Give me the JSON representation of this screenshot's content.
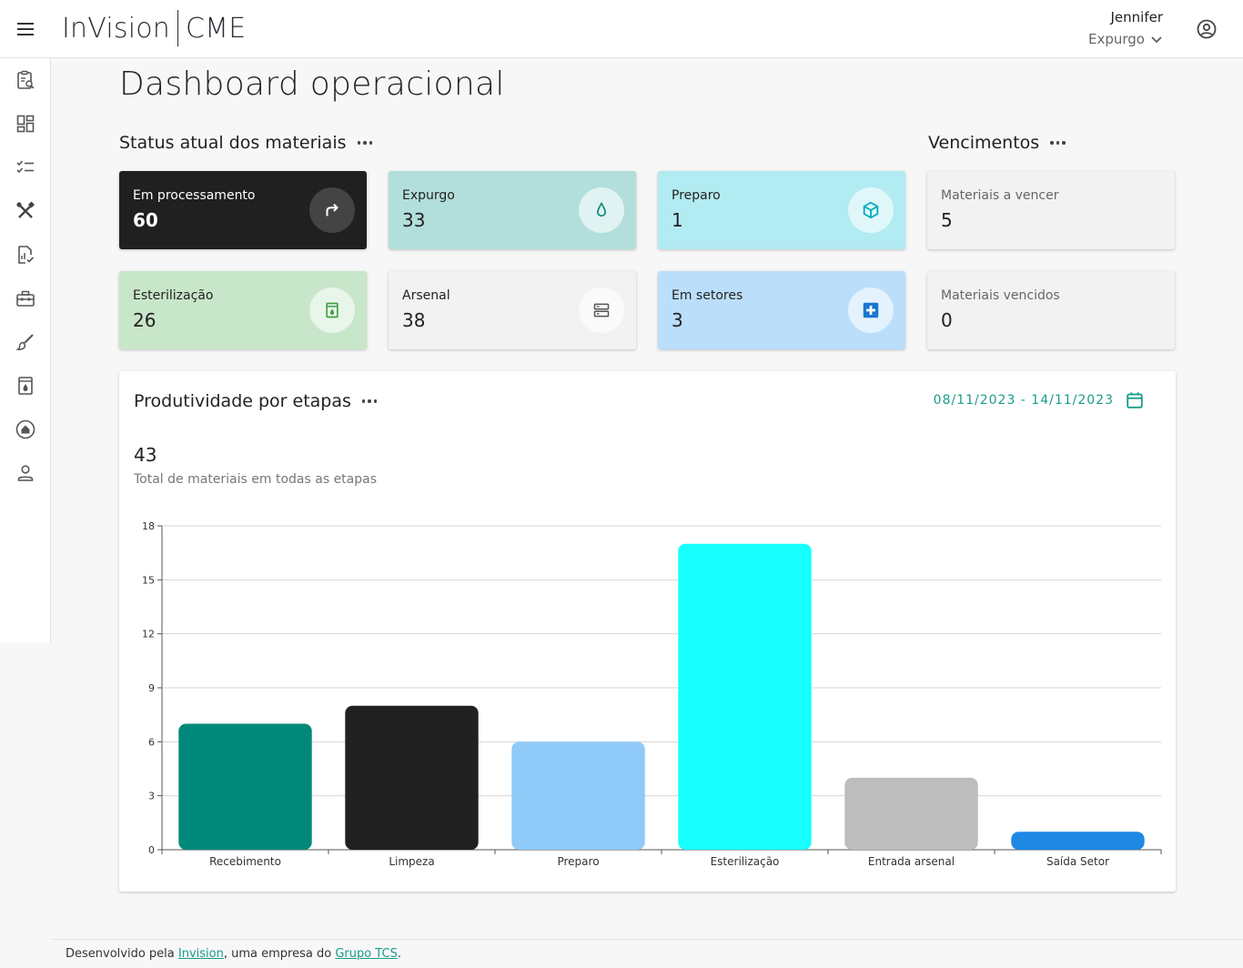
{
  "header": {
    "brand_left": "InVision",
    "brand_right": "CME",
    "user_name": "Jennifer",
    "user_sector": "Expurgo"
  },
  "sidebar": {
    "items": [
      {
        "icon": "clipboard-search-icon"
      },
      {
        "icon": "dashboard-icon"
      },
      {
        "icon": "checklist-icon"
      },
      {
        "icon": "tools-icon"
      },
      {
        "icon": "report-check-icon"
      },
      {
        "icon": "toolbox-icon"
      },
      {
        "icon": "brush-icon"
      },
      {
        "icon": "sterilizer-icon"
      },
      {
        "icon": "home-circle-icon"
      },
      {
        "icon": "person-icon"
      }
    ]
  },
  "page": {
    "title": "Dashboard operacional"
  },
  "status_section": {
    "title": "Status atual dos materiais",
    "cards": [
      {
        "label": "Em processamento",
        "value": "60",
        "icon": "redo-icon"
      },
      {
        "label": "Expurgo",
        "value": "33",
        "icon": "drop-icon"
      },
      {
        "label": "Preparo",
        "value": "1",
        "icon": "box-icon"
      },
      {
        "label": "Esterilização",
        "value": "26",
        "icon": "sterilizer-icon"
      },
      {
        "label": "Arsenal",
        "value": "38",
        "icon": "storage-icon"
      },
      {
        "label": "Em setores",
        "value": "3",
        "icon": "medical-cross-icon"
      }
    ]
  },
  "expiry_section": {
    "title": "Vencimentos",
    "cards": [
      {
        "label": "Materiais a vencer",
        "value": "5"
      },
      {
        "label": "Materiais vencidos",
        "value": "0"
      }
    ]
  },
  "productivity": {
    "title": "Produtividade por etapas",
    "date_range": "08/11/2023 - 14/11/2023",
    "total": "43",
    "total_caption": "Total de materiais em todas as etapas"
  },
  "chart_data": {
    "type": "bar",
    "categories": [
      "Recebimento",
      "Limpeza",
      "Preparo",
      "Esterilização",
      "Entrada arsenal",
      "Saída Setor"
    ],
    "values": [
      7,
      8,
      6,
      17,
      4,
      1
    ],
    "colors": [
      "#00897b",
      "#212121",
      "#90caf9",
      "#18ffff",
      "#bdbdbd",
      "#1e88e5"
    ],
    "yticks": [
      0,
      3,
      6,
      9,
      12,
      15,
      18
    ],
    "ylim": [
      0,
      18
    ],
    "grid": true,
    "legend": false
  },
  "footer": {
    "prefix": "Desenvolvido pela ",
    "link1": "Invision",
    "middle": ", uma empresa do ",
    "link2": "Grupo TCS",
    "suffix": "."
  }
}
